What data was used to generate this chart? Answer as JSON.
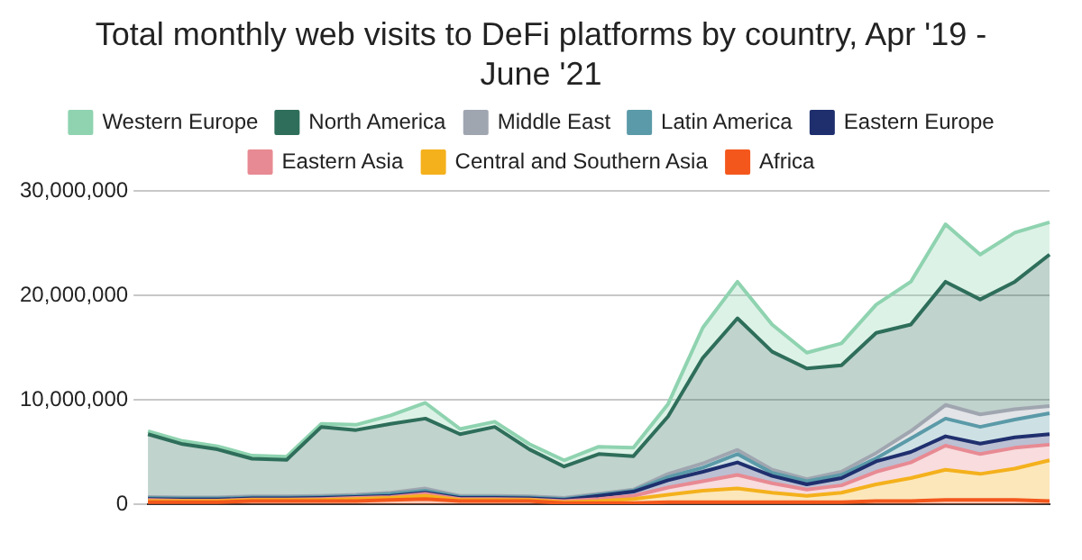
{
  "chart_data": {
    "type": "area",
    "stacked": true,
    "title": "Total monthly web visits to DeFi platforms by country, Apr '19 - June '21",
    "categories": [
      null,
      null,
      null,
      null,
      null,
      null,
      null,
      null,
      null,
      null,
      null,
      null,
      null,
      null,
      null,
      null,
      null,
      null,
      null,
      null,
      null,
      null,
      null,
      null,
      null,
      null,
      null
    ],
    "ylim": [
      0,
      30000000
    ],
    "yticks": [
      {
        "value": 0,
        "label": "0"
      },
      {
        "value": 10000000,
        "label": "10,000,000"
      },
      {
        "value": 20000000,
        "label": "20,000,000"
      },
      {
        "value": 30000000,
        "label": "30,000,000"
      }
    ],
    "grid": "y",
    "legend": "top",
    "tick_labels": "y",
    "series": [
      {
        "name": "Africa",
        "color": "#f4571c",
        "values": [
          200000,
          200000,
          200000,
          300000,
          300000,
          300000,
          300000,
          400000,
          500000,
          300000,
          300000,
          300000,
          100000,
          100000,
          100000,
          200000,
          200000,
          200000,
          200000,
          200000,
          200000,
          300000,
          300000,
          400000,
          400000,
          400000,
          300000
        ]
      },
      {
        "name": "Central and Southern Asia",
        "color": "#f4b11c",
        "values": [
          100000,
          100000,
          100000,
          100000,
          100000,
          100000,
          200000,
          200000,
          300000,
          100000,
          100000,
          100000,
          100000,
          200000,
          400000,
          700000,
          1100000,
          1300000,
          900000,
          600000,
          900000,
          1600000,
          2200000,
          2900000,
          2500000,
          3000000,
          3900000
        ]
      },
      {
        "name": "Eastern Asia",
        "color": "#e88a93",
        "values": [
          100000,
          50000,
          50000,
          50000,
          50000,
          100000,
          100000,
          100000,
          200000,
          100000,
          100000,
          50000,
          100000,
          200000,
          300000,
          700000,
          900000,
          1300000,
          900000,
          600000,
          700000,
          1200000,
          1500000,
          2300000,
          1900000,
          2000000,
          1500000
        ]
      },
      {
        "name": "Eastern Europe",
        "color": "#1f2f6e",
        "values": [
          100000,
          100000,
          100000,
          100000,
          100000,
          100000,
          100000,
          100000,
          100000,
          100000,
          100000,
          100000,
          100000,
          300000,
          400000,
          700000,
          900000,
          1200000,
          700000,
          500000,
          700000,
          1000000,
          1000000,
          900000,
          1000000,
          1000000,
          1000000
        ]
      },
      {
        "name": "Latin America",
        "color": "#5b9aa8",
        "values": [
          100000,
          100000,
          100000,
          100000,
          100000,
          100000,
          100000,
          200000,
          200000,
          100000,
          100000,
          100000,
          100000,
          100000,
          100000,
          300000,
          400000,
          800000,
          300000,
          300000,
          300000,
          300000,
          1300000,
          1700000,
          1600000,
          1700000,
          2000000
        ]
      },
      {
        "name": "Middle East",
        "color": "#a0a6b0",
        "values": [
          100000,
          100000,
          100000,
          100000,
          100000,
          100000,
          100000,
          100000,
          200000,
          100000,
          100000,
          100000,
          100000,
          100000,
          100000,
          300000,
          400000,
          400000,
          300000,
          200000,
          300000,
          500000,
          700000,
          1300000,
          1200000,
          1000000,
          700000
        ]
      },
      {
        "name": "North America",
        "color": "#2e6e5a",
        "values": [
          6000000,
          5100000,
          4600000,
          3600000,
          3500000,
          6600000,
          6200000,
          6600000,
          6700000,
          5900000,
          6600000,
          4500000,
          3000000,
          3800000,
          3200000,
          5500000,
          10100000,
          12600000,
          11300000,
          10600000,
          10200000,
          11500000,
          10200000,
          11800000,
          11000000,
          12200000,
          14500000
        ]
      },
      {
        "name": "Western Europe",
        "color": "#8fd3b0",
        "values": [
          300000,
          300000,
          300000,
          300000,
          300000,
          300000,
          500000,
          800000,
          1500000,
          500000,
          500000,
          500000,
          600000,
          700000,
          800000,
          1200000,
          2900000,
          3500000,
          2600000,
          1500000,
          2100000,
          2700000,
          4100000,
          5500000,
          4300000,
          4700000,
          3100000
        ]
      }
    ]
  }
}
